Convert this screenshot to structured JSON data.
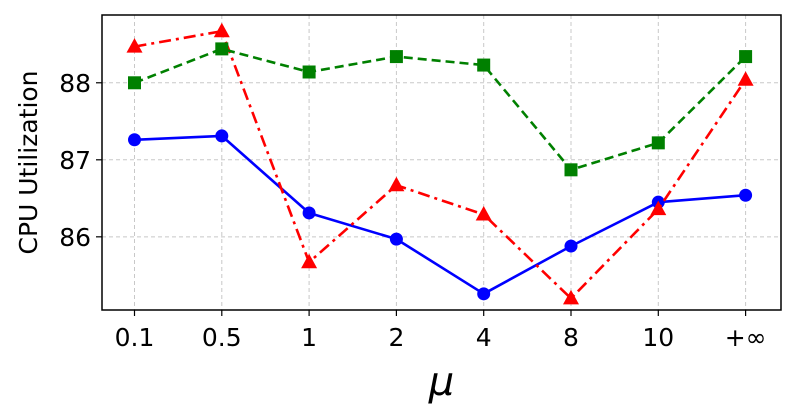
{
  "chart_data": {
    "type": "line",
    "xlabel": "μ",
    "ylabel": "CPU Utilization",
    "categories": [
      "0.1",
      "0.5",
      "1",
      "2",
      "4",
      "8",
      "10",
      "+∞"
    ],
    "ylim": [
      85.05,
      88.88
    ],
    "yticks": [
      "86",
      "87",
      "88"
    ],
    "grid": true,
    "series": [
      {
        "color": "#0000ff",
        "line_style": "solid",
        "marker": "circle",
        "values": [
          87.26,
          87.31,
          86.31,
          85.97,
          85.26,
          85.88,
          86.45,
          86.54
        ]
      },
      {
        "color": "#ff0000",
        "line_style": "dashdot",
        "marker": "triangle",
        "values": [
          88.47,
          88.67,
          85.67,
          86.67,
          86.29,
          85.2,
          86.36,
          88.04
        ]
      },
      {
        "color": "#008000",
        "line_style": "dashed",
        "marker": "square",
        "values": [
          88.0,
          88.44,
          88.14,
          88.34,
          88.23,
          86.87,
          87.22,
          88.34
        ]
      }
    ]
  }
}
